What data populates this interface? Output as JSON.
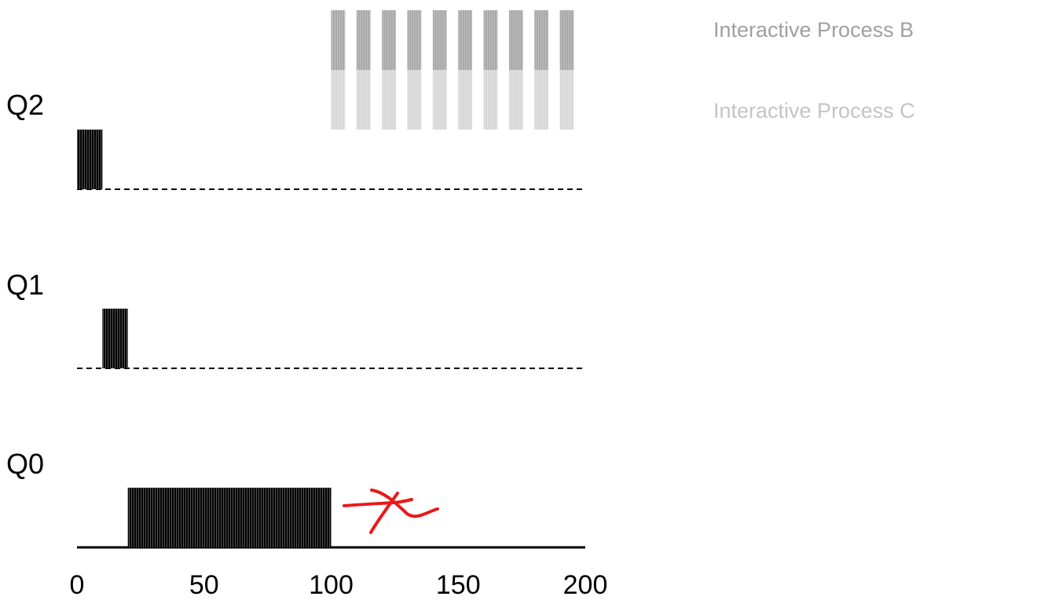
{
  "legend": [
    {
      "label": "Interactive Process B",
      "color": "#a6a6a6"
    },
    {
      "label": "Interactive Process C",
      "color": "#d6d6d6"
    }
  ],
  "queues": [
    "Q2",
    "Q1",
    "Q0"
  ],
  "x_axis": {
    "min": 0,
    "max": 200,
    "ticks": [
      "0",
      "50",
      "100",
      "150",
      "200"
    ]
  },
  "colors": {
    "job_a": "#000000",
    "process_b": "#a6a6a6",
    "process_c": "#d6d6d6",
    "annotation": "#e8191a"
  },
  "jobs": {
    "long_running_a": [
      {
        "queue": "Q2",
        "start": 0,
        "end": 10
      },
      {
        "queue": "Q1",
        "start": 10,
        "end": 20
      },
      {
        "queue": "Q0",
        "start": 20,
        "end": 100
      }
    ],
    "process_b": {
      "queue": "Q2",
      "start": 100,
      "end": 200,
      "bursts": 10
    },
    "process_c": {
      "queue": "Q2",
      "start": 100,
      "end": 200,
      "bursts": 10
    }
  }
}
